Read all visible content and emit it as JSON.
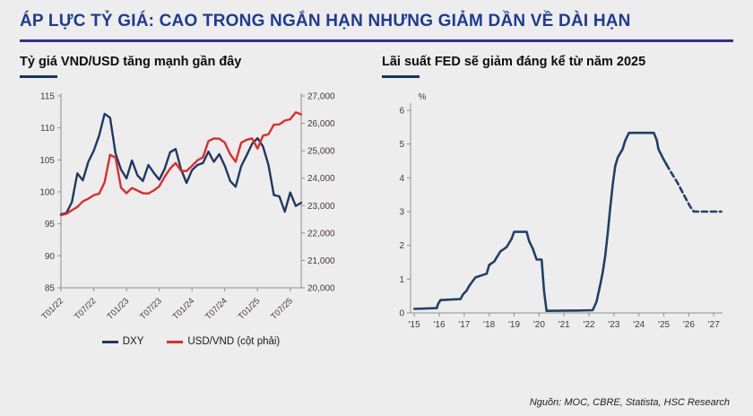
{
  "header": {
    "title": "ÁP LỰC TỶ GIÁ: CAO TRONG NGẮN HẠN NHƯNG GIẢM DẦN VỀ DÀI HẠN"
  },
  "colors": {
    "title_blue": "#1e3a96",
    "accent_rule_blue": "#2e3192",
    "heading_bar_navy": "#17365d",
    "dxy_navy": "#1f3864",
    "usdvnd_red": "#e02b2b",
    "fed_navy": "#1f4068",
    "background_gray": "#ededed"
  },
  "footer": {
    "source": "Nguồn: MOC, CBRE, Statista, HSC Research"
  },
  "chart_data": [
    {
      "type": "line",
      "title": "Tỷ giá VND/USD tăng mạnh gần đây",
      "x_tick_labels": [
        "T01/22",
        "T07/22",
        "T01/23",
        "T07/23",
        "T01/24",
        "T07/24",
        "T01/25",
        "T07/25"
      ],
      "x_tick_indices": [
        0,
        6,
        12,
        18,
        24,
        30,
        36,
        42
      ],
      "x_frequency": "monthly, Jan 2022 - Sep 2025",
      "y_left": {
        "min": 85,
        "max": 115,
        "step": 5
      },
      "y_right": {
        "min": 20000,
        "max": 27000,
        "step": 1000
      },
      "legend_position": "bottom",
      "grid": false,
      "series": [
        {
          "name": "DXY",
          "axis": "left",
          "color": "#1f3864",
          "values": [
            96.5,
            96.7,
            98.4,
            102.9,
            101.8,
            104.7,
            106.4,
            108.8,
            112.2,
            111.6,
            106.0,
            103.5,
            102.1,
            104.9,
            102.6,
            101.7,
            104.2,
            103.0,
            101.9,
            103.6,
            106.2,
            106.7,
            103.5,
            101.4,
            103.4,
            104.2,
            104.5,
            106.3,
            104.7,
            105.9,
            104.1,
            101.7,
            100.8,
            104.0,
            105.7,
            107.5,
            108.4,
            107.1,
            104.2,
            99.5,
            99.3,
            96.9,
            99.9,
            97.8,
            98.3
          ]
        },
        {
          "name": "USD/VND (cột phải)",
          "axis": "right",
          "color": "#e02b2b",
          "values": [
            22650,
            22700,
            22830,
            22950,
            23150,
            23250,
            23380,
            23430,
            23850,
            24850,
            24750,
            23650,
            23450,
            23640,
            23550,
            23450,
            23440,
            23550,
            23700,
            24050,
            24350,
            24550,
            24270,
            24260,
            24450,
            24650,
            24760,
            25350,
            25450,
            25440,
            25300,
            24870,
            24600,
            25290,
            25400,
            25450,
            25080,
            25550,
            25600,
            25950,
            25960,
            26100,
            26150,
            26400,
            26330
          ]
        }
      ]
    },
    {
      "type": "line",
      "title": "Lãi suất FED sẽ giảm đáng kể từ năm 2025",
      "ylabel": "%",
      "x_range": [
        2014.85,
        2027.35
      ],
      "x_ticks": [
        2015,
        2016,
        2017,
        2018,
        2019,
        2020,
        2021,
        2022,
        2023,
        2024,
        2025,
        2026,
        2027
      ],
      "x_tick_labels": [
        "'15",
        "'16",
        "'17",
        "'18",
        "'19",
        "'20",
        "'21",
        "'22",
        "'23",
        "'24",
        "'25",
        "'26",
        "'27"
      ],
      "y": {
        "min": 0,
        "max": 6,
        "step": 1
      },
      "grid": false,
      "series": [
        {
          "name": "fed-rate-actual",
          "style": "solid",
          "color": "#1f4068",
          "points": [
            [
              2015.0,
              0.12
            ],
            [
              2015.9,
              0.14
            ],
            [
              2015.95,
              0.26
            ],
            [
              2016.05,
              0.38
            ],
            [
              2016.85,
              0.41
            ],
            [
              2016.95,
              0.55
            ],
            [
              2017.1,
              0.66
            ],
            [
              2017.2,
              0.8
            ],
            [
              2017.45,
              1.05
            ],
            [
              2017.9,
              1.16
            ],
            [
              2018.0,
              1.42
            ],
            [
              2018.2,
              1.52
            ],
            [
              2018.45,
              1.82
            ],
            [
              2018.7,
              1.95
            ],
            [
              2018.9,
              2.2
            ],
            [
              2019.0,
              2.4
            ],
            [
              2019.5,
              2.4
            ],
            [
              2019.6,
              2.13
            ],
            [
              2019.75,
              1.9
            ],
            [
              2019.9,
              1.58
            ],
            [
              2020.1,
              1.58
            ],
            [
              2020.2,
              0.65
            ],
            [
              2020.3,
              0.06
            ],
            [
              2021.5,
              0.07
            ],
            [
              2022.15,
              0.08
            ],
            [
              2022.3,
              0.33
            ],
            [
              2022.45,
              0.83
            ],
            [
              2022.55,
              1.21
            ],
            [
              2022.65,
              1.7
            ],
            [
              2022.75,
              2.35
            ],
            [
              2022.85,
              3.1
            ],
            [
              2022.95,
              3.8
            ],
            [
              2023.05,
              4.35
            ],
            [
              2023.15,
              4.6
            ],
            [
              2023.35,
              4.85
            ],
            [
              2023.45,
              5.1
            ],
            [
              2023.6,
              5.33
            ],
            [
              2024.6,
              5.33
            ],
            [
              2024.72,
              5.1
            ],
            [
              2024.78,
              4.85
            ],
            [
              2024.95,
              4.6
            ],
            [
              2025.1,
              4.4
            ]
          ],
          "width": 2.6
        },
        {
          "name": "fed-rate-forecast",
          "style": "dashed",
          "color": "#1f4068",
          "points": [
            [
              2025.1,
              4.4
            ],
            [
              2025.3,
              4.15
            ],
            [
              2025.55,
              3.85
            ],
            [
              2025.8,
              3.5
            ],
            [
              2026.05,
              3.15
            ],
            [
              2026.2,
              3.0
            ],
            [
              2027.3,
              3.0
            ]
          ],
          "width": 2.6
        }
      ]
    }
  ]
}
